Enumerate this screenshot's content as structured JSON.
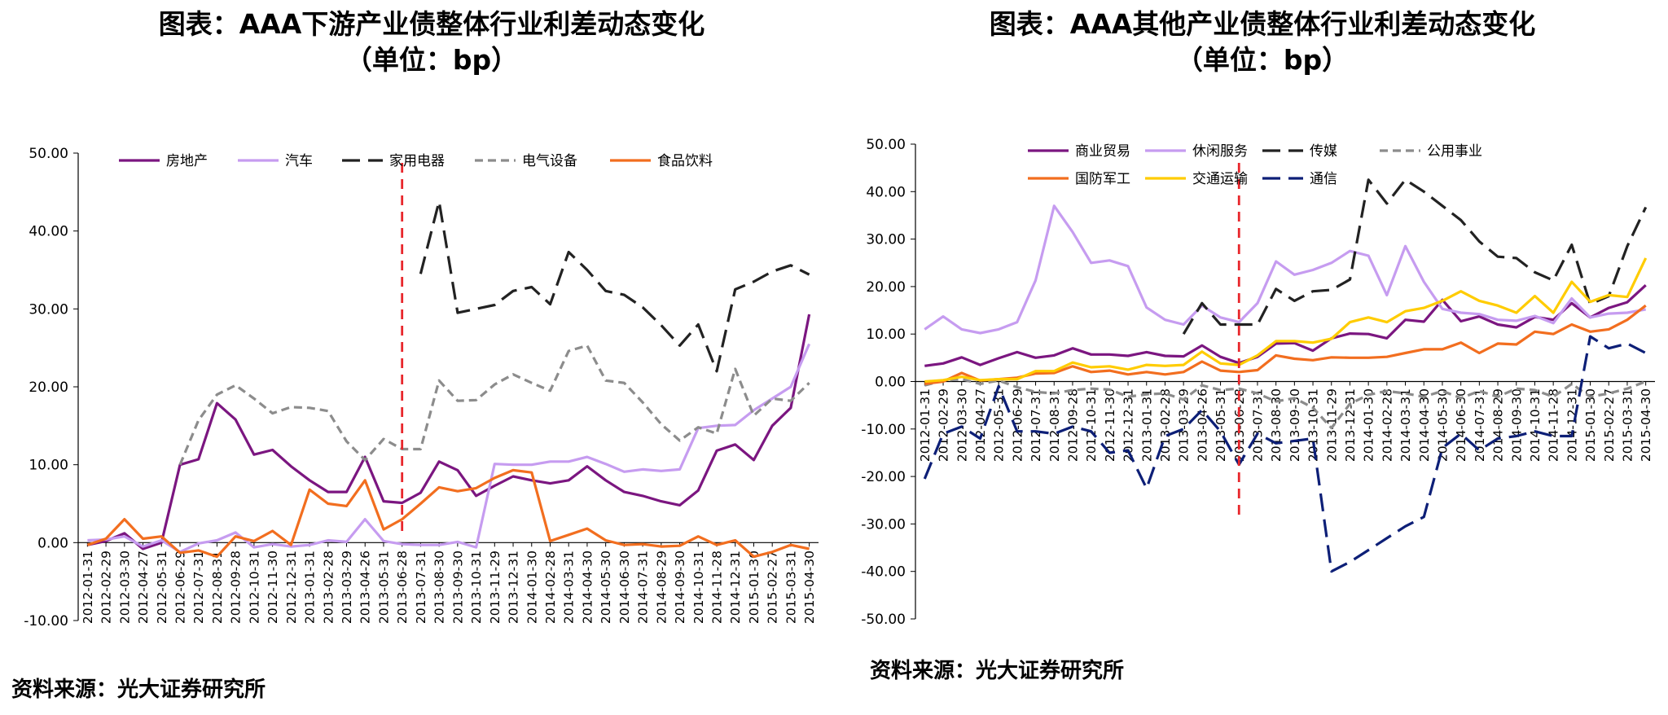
{
  "titles": {
    "left": {
      "line1": "图表：AAA下游产业债整体行业利差动态变化",
      "line2": "（单位：bp）"
    },
    "right": {
      "line1": "图表：AAA其他产业债整体行业利差动态变化",
      "line2": "（单位：bp）"
    }
  },
  "sources": {
    "left": "资料来源：光大证券研究所",
    "right": "资料来源：光大证券研究所"
  },
  "chart_data": [
    {
      "type": "line",
      "title": "图表：AAA下游产业债整体行业利差动态变化（单位：bp）",
      "ylim": [
        -10,
        50
      ],
      "yticks": [
        "-10.00",
        "0.00",
        "10.00",
        "20.00",
        "30.00",
        "40.00",
        "50.00"
      ],
      "grid": false,
      "legend": "top",
      "marker_line": {
        "x": "2013-06-28",
        "color": "#e8262b"
      },
      "x": [
        "2012-01-31",
        "2012-02-29",
        "2012-03-30",
        "2012-04-27",
        "2012-05-31",
        "2012-06-29",
        "2012-07-31",
        "2012-08-31",
        "2012-09-28",
        "2012-10-31",
        "2012-11-30",
        "2012-12-31",
        "2013-01-31",
        "2013-02-28",
        "2013-03-29",
        "2013-04-26",
        "2013-05-31",
        "2013-06-28",
        "2013-07-31",
        "2013-08-30",
        "2013-09-30",
        "2013-10-31",
        "2013-11-29",
        "2013-12-31",
        "2014-01-30",
        "2014-02-28",
        "2014-03-31",
        "2014-04-30",
        "2014-05-30",
        "2014-06-30",
        "2014-07-31",
        "2014-08-29",
        "2014-09-30",
        "2014-10-31",
        "2014-11-28",
        "2014-12-31",
        "2015-01-30",
        "2015-02-27",
        "2015-03-31",
        "2015-04-30"
      ],
      "series": [
        {
          "name": "房地产",
          "color": "#7b1680",
          "dash": "solid",
          "values": [
            -0.3,
            0.2,
            1.2,
            -0.8,
            0.0,
            10.0,
            10.7,
            17.9,
            15.8,
            11.3,
            11.9,
            9.8,
            8.0,
            6.5,
            6.5,
            11.0,
            5.3,
            5.1,
            6.4,
            10.4,
            9.3,
            6.0,
            7.3,
            8.5,
            8.0,
            7.6,
            8.0,
            9.8,
            8.0,
            6.5,
            6.0,
            5.3,
            4.8,
            6.7,
            11.8,
            12.6,
            10.6,
            15.0,
            17.3,
            29.3
          ]
        },
        {
          "name": "汽车",
          "color": "#c69cf0",
          "dash": "solid",
          "values": [
            0.3,
            0.4,
            0.8,
            -0.5,
            0.3,
            -1.2,
            -0.1,
            0.3,
            1.3,
            -0.6,
            -0.2,
            -0.5,
            -0.3,
            0.3,
            0.1,
            3.0,
            0.2,
            -0.2,
            -0.3,
            -0.3,
            0.1,
            -0.6,
            10.1,
            10.0,
            10.0,
            10.4,
            10.4,
            11.0,
            10.1,
            9.1,
            9.4,
            9.2,
            9.4,
            14.7,
            15.0,
            15.1,
            17.0,
            18.5,
            20.0,
            25.5
          ]
        },
        {
          "name": "家用电器",
          "color": "#222222",
          "dash": "dash",
          "values": [
            null,
            null,
            null,
            null,
            null,
            null,
            null,
            null,
            null,
            null,
            null,
            null,
            null,
            null,
            null,
            null,
            null,
            null,
            34.5,
            43.8,
            29.5,
            30.0,
            30.5,
            32.3,
            32.8,
            30.6,
            37.3,
            35.0,
            32.3,
            31.8,
            30.2,
            27.9,
            25.3,
            28.0,
            22.0,
            32.5,
            33.5,
            34.8,
            35.6,
            34.4
          ]
        },
        {
          "name": "电气设备",
          "color": "#8c8c8c",
          "dash": "dash2",
          "values": [
            null,
            null,
            null,
            null,
            null,
            10.0,
            15.7,
            19.0,
            20.2,
            18.5,
            16.6,
            17.4,
            17.3,
            16.9,
            13.0,
            10.6,
            13.3,
            12.0,
            12.0,
            20.8,
            18.2,
            18.3,
            20.3,
            21.6,
            20.5,
            19.5,
            24.6,
            25.3,
            20.8,
            20.5,
            18.0,
            15.2,
            13.1,
            14.8,
            14.0,
            22.3,
            16.3,
            18.5,
            18.2,
            20.5
          ]
        },
        {
          "name": "食品饮料",
          "color": "#f26e1f",
          "dash": "solid",
          "values": [
            -0.3,
            0.5,
            3.0,
            0.5,
            0.8,
            -1.3,
            -1.0,
            -1.8,
            0.8,
            0.2,
            1.5,
            -0.3,
            6.8,
            5.0,
            4.7,
            8.0,
            1.7,
            3.0,
            5.0,
            7.1,
            6.6,
            7.0,
            8.3,
            9.3,
            9.0,
            0.2,
            1.0,
            1.8,
            0.3,
            -0.3,
            -0.2,
            -0.5,
            -0.4,
            0.8,
            -0.3,
            0.3,
            -1.8,
            -1.2,
            -0.3,
            -0.8
          ]
        }
      ]
    },
    {
      "type": "line",
      "title": "图表：AAA其他产业债整体行业利差动态变化（单位：bp）",
      "ylim": [
        -50,
        50
      ],
      "yticks": [
        "-50.00",
        "-40.00",
        "-30.00",
        "-20.00",
        "-10.00",
        "0.00",
        "10.00",
        "20.00",
        "30.00",
        "40.00",
        "50.00"
      ],
      "grid": false,
      "legend": "top",
      "marker_line": {
        "x": "2013-06-28",
        "color": "#e8262b"
      },
      "x": [
        "2012-01-31",
        "2012-02-29",
        "2012-03-30",
        "2012-04-27",
        "2012-05-31",
        "2012-06-29",
        "2012-07-31",
        "2012-08-31",
        "2012-09-28",
        "2012-10-31",
        "2012-11-30",
        "2012-12-31",
        "2013-01-31",
        "2013-02-28",
        "2013-03-29",
        "2013-04-26",
        "2013-05-31",
        "2013-06-28",
        "2013-07-31",
        "2013-08-30",
        "2013-09-30",
        "2013-10-31",
        "2013-11-29",
        "2013-12-31",
        "2014-01-30",
        "2014-02-28",
        "2014-03-31",
        "2014-04-30",
        "2014-05-30",
        "2014-06-30",
        "2014-07-31",
        "2014-08-29",
        "2014-09-30",
        "2014-10-31",
        "2014-11-28",
        "2014-12-31",
        "2015-01-30",
        "2015-02-27",
        "2015-03-31",
        "2015-04-30"
      ],
      "series": [
        {
          "name": "商业贸易",
          "color": "#7b1680",
          "dash": "solid",
          "values": [
            3.3,
            3.8,
            5.1,
            3.5,
            4.9,
            6.2,
            5.0,
            5.5,
            7.0,
            5.7,
            5.7,
            5.4,
            6.2,
            5.4,
            5.3,
            7.6,
            5.2,
            3.9,
            5.2,
            8.0,
            8.1,
            6.5,
            9.1,
            10.1,
            10.0,
            9.1,
            13.0,
            12.6,
            17.2,
            12.7,
            13.7,
            12.0,
            11.4,
            13.6,
            13.0,
            16.5,
            13.5,
            15.5,
            16.7,
            20.3
          ]
        },
        {
          "name": "休闲服务",
          "color": "#c69cf0",
          "dash": "solid",
          "values": [
            11.0,
            13.7,
            11.0,
            10.2,
            11.0,
            12.5,
            21.3,
            37.0,
            31.5,
            25.0,
            25.5,
            24.3,
            15.6,
            13.0,
            12.0,
            16.0,
            13.5,
            12.5,
            16.5,
            25.3,
            22.5,
            23.5,
            25.0,
            27.5,
            26.5,
            18.2,
            28.5,
            21.0,
            15.3,
            14.5,
            14.2,
            13.0,
            12.8,
            13.8,
            12.3,
            17.5,
            13.5,
            14.3,
            14.5,
            15.2
          ]
        },
        {
          "name": "传媒",
          "color": "#222222",
          "dash": "dash",
          "values": [
            null,
            null,
            null,
            null,
            null,
            null,
            null,
            null,
            null,
            null,
            null,
            null,
            null,
            null,
            10.0,
            16.5,
            12.0,
            12.0,
            12.0,
            19.5,
            17.0,
            19.0,
            19.3,
            21.5,
            42.5,
            37.5,
            42.5,
            40.0,
            37.0,
            34.0,
            29.5,
            26.3,
            26.0,
            23.0,
            21.3,
            28.8,
            16.3,
            18.0,
            28.5,
            36.7
          ]
        },
        {
          "name": "公用事业",
          "color": "#8c8c8c",
          "dash": "dash2",
          "values": [
            -0.8,
            0.2,
            0.5,
            -0.5,
            0.2,
            -1.2,
            -2.2,
            -2.5,
            -1.8,
            -1.5,
            -1.7,
            -3.2,
            -2.7,
            -2.5,
            -3.8,
            -0.8,
            -1.8,
            -1.5,
            -2.5,
            -4.2,
            -3.5,
            -5.5,
            -9.8,
            -4.7,
            -2.8,
            -2.0,
            -2.5,
            -3.2,
            -2.0,
            -3.5,
            -2.0,
            -3.2,
            -1.5,
            -1.8,
            -3.2,
            -0.5,
            -3.2,
            -2.5,
            -1.5,
            0.0
          ]
        },
        {
          "name": "国防军工",
          "color": "#f26e1f",
          "dash": "solid",
          "values": [
            -0.5,
            0.0,
            1.8,
            0.2,
            0.5,
            0.8,
            1.7,
            1.8,
            3.2,
            2.0,
            2.3,
            1.5,
            2.0,
            1.5,
            2.0,
            4.2,
            2.3,
            2.0,
            2.4,
            5.5,
            4.8,
            4.5,
            5.1,
            5.0,
            5.0,
            5.2,
            6.0,
            6.8,
            6.8,
            8.2,
            6.0,
            8.0,
            7.8,
            10.5,
            10.0,
            12.0,
            10.5,
            11.0,
            13.0,
            16.0
          ]
        },
        {
          "name": "交通运输",
          "color": "#ffcc00",
          "dash": "solid",
          "values": [
            0.0,
            0.3,
            1.0,
            0.3,
            0.5,
            0.5,
            2.2,
            2.2,
            4.0,
            3.0,
            3.2,
            2.5,
            3.5,
            3.3,
            3.5,
            6.3,
            3.8,
            3.5,
            5.5,
            8.5,
            8.5,
            8.2,
            9.0,
            12.5,
            13.5,
            12.5,
            14.8,
            15.5,
            17.0,
            19.0,
            17.0,
            16.0,
            14.5,
            18.0,
            14.5,
            21.0,
            16.8,
            18.2,
            17.8,
            26.0
          ]
        },
        {
          "name": "通信",
          "color": "#0d1f77",
          "dash": "dash",
          "values": [
            -20.5,
            -11.0,
            -9.5,
            -12.0,
            -1.0,
            -10.5,
            -10.5,
            -11.0,
            -9.5,
            -10.5,
            -15.0,
            -14.5,
            -22.5,
            -11.5,
            -10.0,
            -6.0,
            -10.5,
            -17.5,
            -11.0,
            -13.0,
            -12.5,
            -12.0,
            -40.0,
            -38.0,
            -35.5,
            -33.0,
            -30.5,
            -28.5,
            -14.0,
            -11.0,
            -14.5,
            -12.0,
            -11.5,
            -10.5,
            -11.5,
            -11.5,
            9.5,
            7.0,
            8.0,
            6.0
          ]
        }
      ]
    }
  ]
}
